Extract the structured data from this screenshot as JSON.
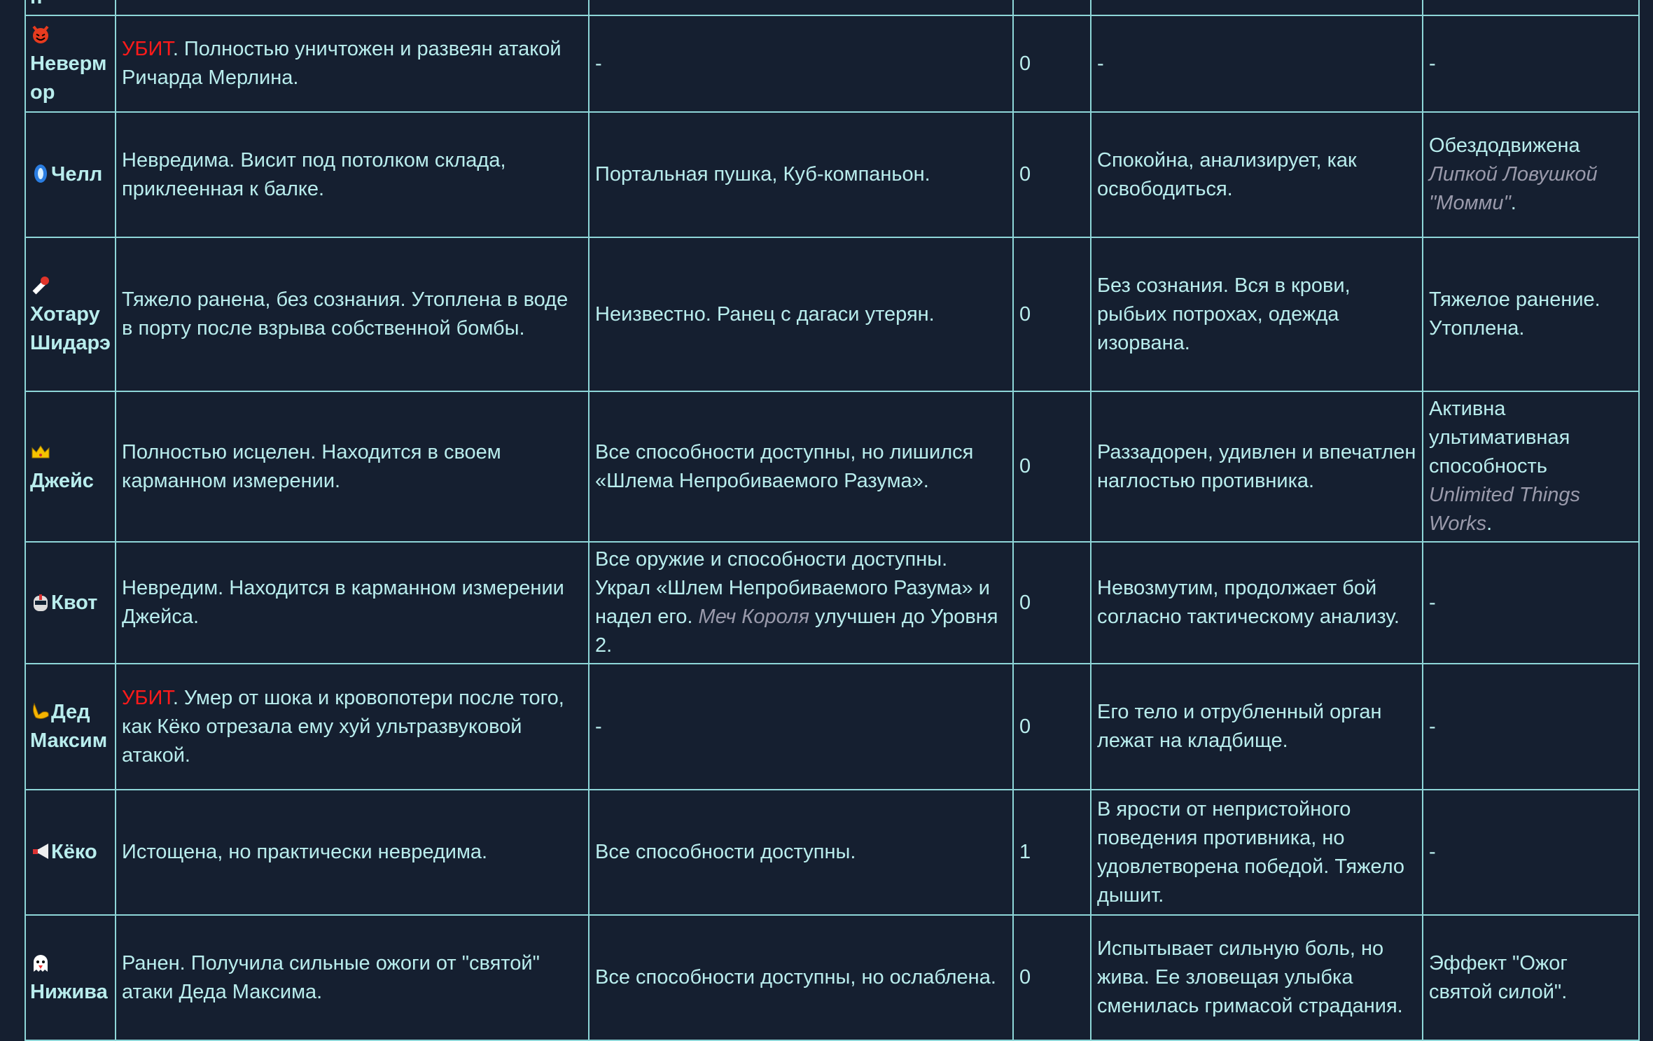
{
  "top_row_fragment": "п",
  "rows": [
    {
      "icon": "devil-icon",
      "name": "Неверм ор",
      "icon_block": true,
      "status_prefix": "УБИТ",
      "status": ". Полностью уничтожен и развеян атакой Ричарда Мерлина.",
      "equipment": [
        {
          "t": "-"
        }
      ],
      "count": "0",
      "mood": "-",
      "effects": [
        {
          "t": "-"
        }
      ]
    },
    {
      "icon": "portal-icon",
      "name": "Челл",
      "icon_block": false,
      "status_prefix": "",
      "status": "Невредима. Висит под потолком склада, приклеенная к балке.",
      "equipment": [
        {
          "t": "Портальная пушка, Куб-компаньон."
        }
      ],
      "count": "0",
      "mood": "Спокойна, анализирует, как освободиться.",
      "effects": [
        {
          "t": "Обездодвижена "
        },
        {
          "t": "Липкой Ловушкой \"Момми\"",
          "i": true
        },
        {
          "t": "."
        }
      ]
    },
    {
      "icon": "bomb-icon",
      "name": "Хотару Шидарэ",
      "icon_block": true,
      "status_prefix": "",
      "status": "Тяжело ранена, без сознания. Утоплена в воде в порту после взрыва собственной бомбы.",
      "equipment": [
        {
          "t": "Неизвестно. Ранец с дагаси утерян."
        }
      ],
      "count": "0",
      "mood": "Без сознания. Вся в крови, рыбьих потрохах, одежда изорвана.",
      "effects": [
        {
          "t": "Тяжелое ранение. Утоплена."
        }
      ]
    },
    {
      "icon": "crown-icon",
      "name": "Джейс",
      "icon_block": true,
      "status_prefix": "",
      "status": "Полностью исцелен. Находится в своем карманном измерении.",
      "equipment": [
        {
          "t": "Все способности доступны, но лишился «Шлема Непробиваемого Разума»."
        }
      ],
      "count": "0",
      "mood": "Раззадорен, удивлен и впечатлен наглостью противника.",
      "effects": [
        {
          "t": "Активна ультимативная способность "
        },
        {
          "t": "Unlimited Things Works",
          "i": true
        },
        {
          "t": "."
        }
      ]
    },
    {
      "icon": "robot-icon",
      "name": "Квот",
      "icon_block": false,
      "status_prefix": "",
      "status": "Невредим. Находится в карманном измерении Джейса.",
      "equipment": [
        {
          "t": "Все оружие и способности доступны. Украл «Шлем Непробиваемого Разума» и надел его. "
        },
        {
          "t": "Меч Короля",
          "i": true
        },
        {
          "t": " улучшен до Уровня 2."
        }
      ],
      "count": "0",
      "mood": "Невозмутим, продолжает бой согласно тактическому анализу.",
      "effects": [
        {
          "t": "-"
        }
      ]
    },
    {
      "icon": "flexed-biceps-icon",
      "name": "Дед Максим",
      "icon_block": false,
      "status_prefix": "УБИТ",
      "status": ". Умер от шока и кровопотери после того, как Кёко отрезала ему хуй ультразвуковой атакой.",
      "equipment": [
        {
          "t": "-"
        }
      ],
      "count": "0",
      "mood": "Его тело и отрубленный орган лежат на кладбище.",
      "effects": [
        {
          "t": "-"
        }
      ]
    },
    {
      "icon": "megaphone-icon",
      "name": "Кёко",
      "icon_block": false,
      "status_prefix": "",
      "status": "Истощена, но практически невредима.",
      "equipment": [
        {
          "t": "Все способности доступны."
        }
      ],
      "count": "1",
      "mood": "В ярости от непристойного поведения противника, но удовлетворена победой. Тяжело дышит.",
      "effects": [
        {
          "t": "-"
        }
      ]
    },
    {
      "icon": "ghost-icon",
      "name": "Нижива",
      "icon_block": true,
      "status_prefix": "",
      "status": "Ранен. Получила сильные ожоги от \"святой\" атаки Деда Максима.",
      "equipment": [
        {
          "t": "Все способности доступны, но ослаблена."
        }
      ],
      "count": "0",
      "mood": "Испытывает сильную боль, но жива. Ее зловещая улыбка сменилась гримасой страдания.",
      "effects": [
        {
          "t": "Эффект \"Ожог святой силой\"."
        }
      ]
    }
  ],
  "colors": {
    "background": "#151f30",
    "text": "#b9eded",
    "border": "#8ed6d8",
    "killed": "#ff1a1a",
    "italic": "#9a9aab"
  }
}
